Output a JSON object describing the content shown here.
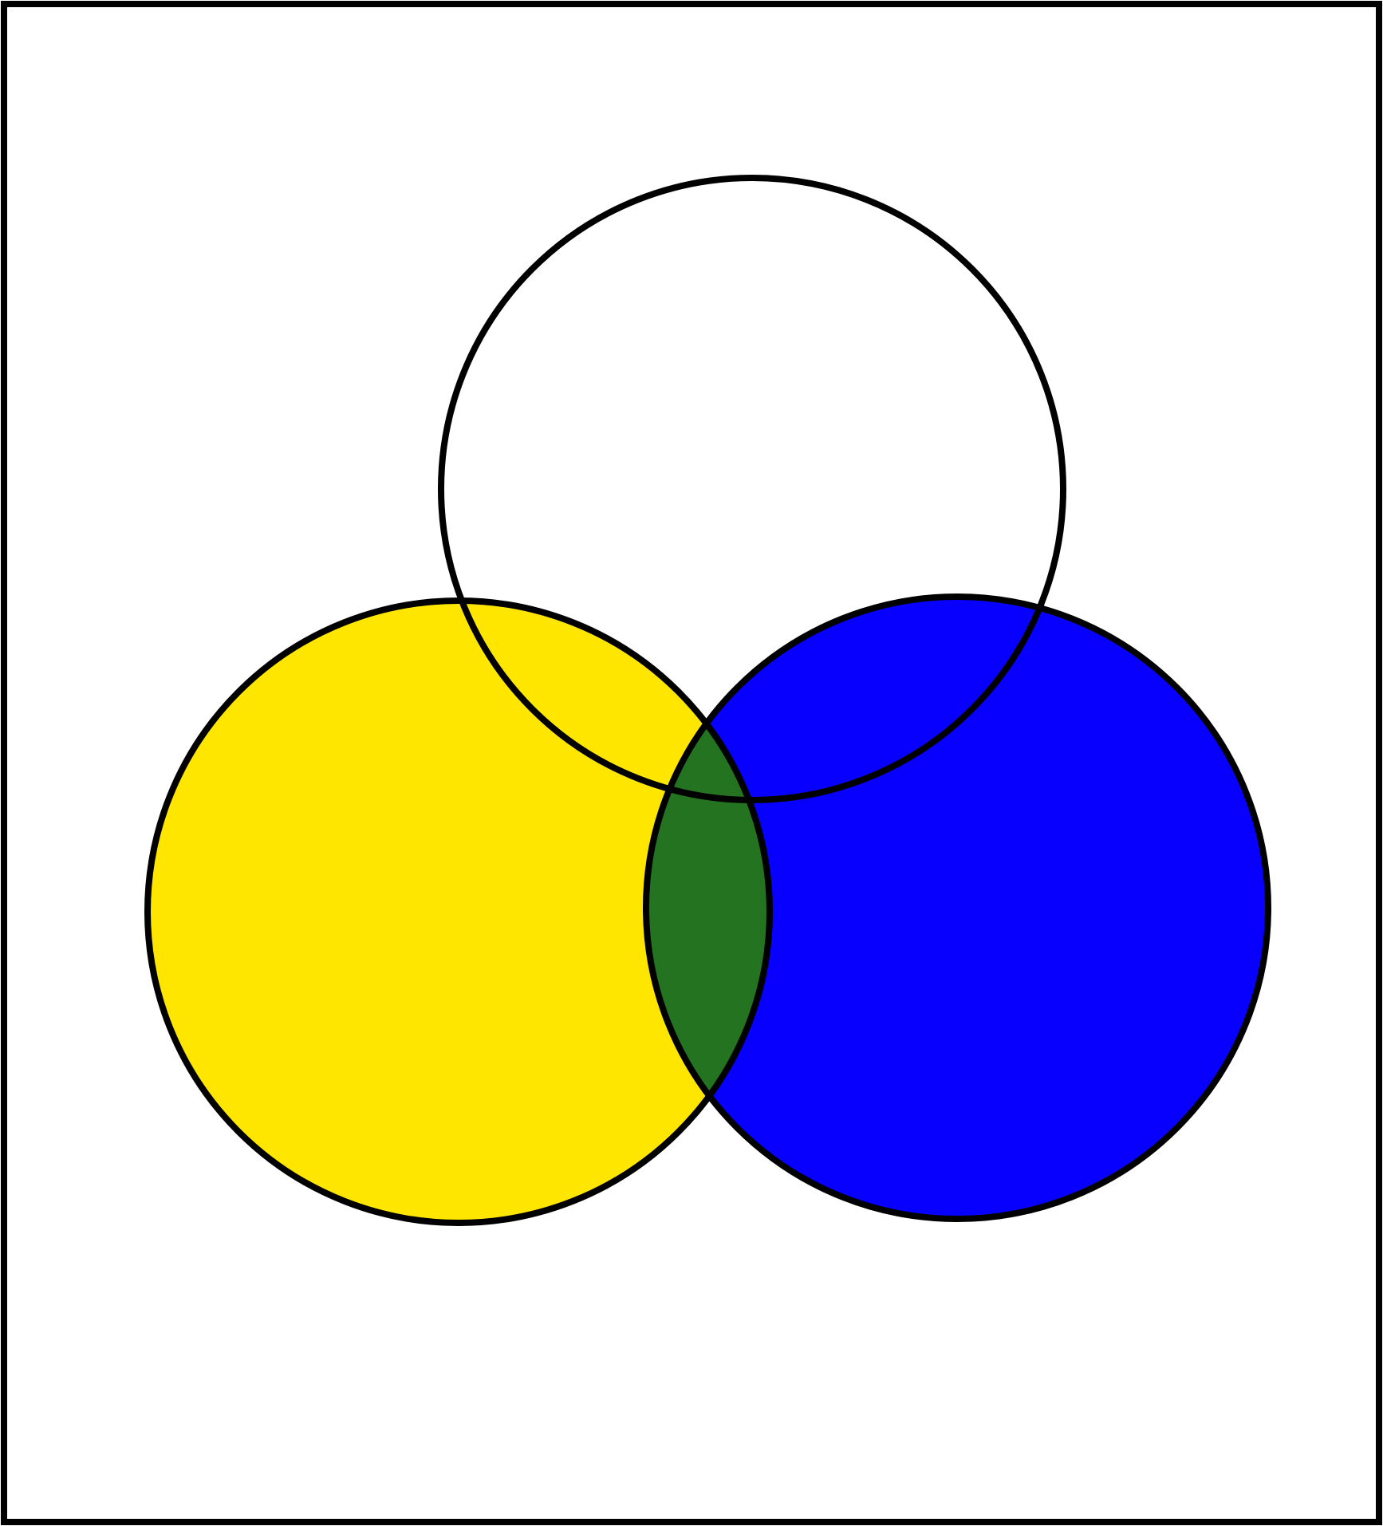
{
  "diagram": {
    "type": "venn",
    "sets": [
      {
        "id": "top",
        "fill": "none"
      },
      {
        "id": "left",
        "fill": "#FFE600"
      },
      {
        "id": "right",
        "fill": "#0800FF"
      }
    ],
    "intersections": [
      {
        "sets": [
          "left",
          "right"
        ],
        "fill": "#237321"
      }
    ],
    "outline_color": "#000000",
    "frame_color": "#000000",
    "background": "#FFFFFF"
  }
}
